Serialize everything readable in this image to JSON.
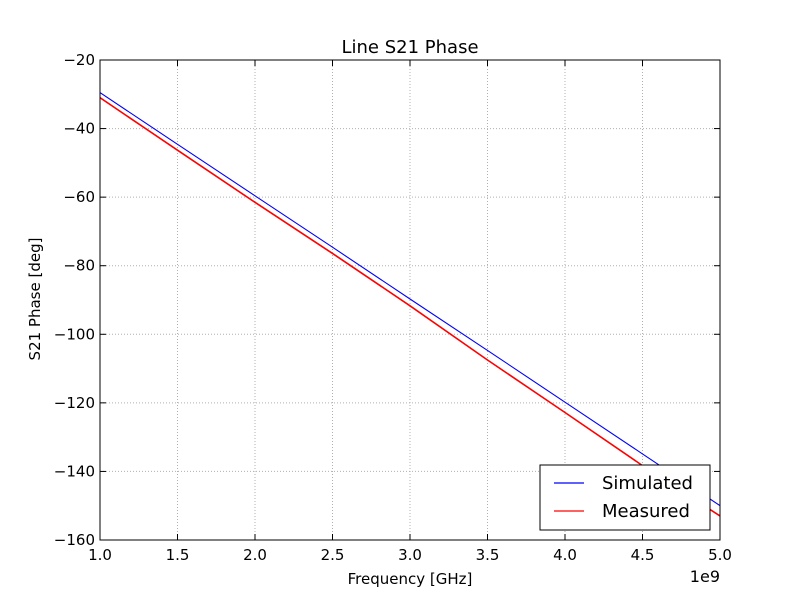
{
  "chart_data": {
    "type": "line",
    "title": "Line S21 Phase",
    "xlabel": "Frequency [GHz]",
    "ylabel": "S21 Phase [deg]",
    "x_offset_label": "1e9",
    "xlim": [
      1.0,
      5.0
    ],
    "ylim": [
      -160,
      -20
    ],
    "xticks": [
      1.0,
      1.5,
      2.0,
      2.5,
      3.0,
      3.5,
      4.0,
      4.5,
      5.0
    ],
    "xtick_labels": [
      "1.0",
      "1.5",
      "2.0",
      "2.5",
      "3.0",
      "3.5",
      "4.0",
      "4.5",
      "5.0"
    ],
    "yticks": [
      -160,
      -140,
      -120,
      -100,
      -80,
      -60,
      -40,
      -20
    ],
    "ytick_labels": [
      "−160",
      "−140",
      "−120",
      "−100",
      "−80",
      "−60",
      "−40",
      "−20"
    ],
    "grid": true,
    "legend_position": "lower-right",
    "series": [
      {
        "name": "Simulated",
        "color": "#0000ff",
        "x": [
          1.0,
          1.5,
          2.0,
          2.5,
          3.0,
          3.5,
          4.0,
          4.5,
          5.0
        ],
        "values": [
          -29.5,
          -44.6,
          -59.6,
          -74.6,
          -89.7,
          -104.7,
          -119.8,
          -134.9,
          -150.0
        ]
      },
      {
        "name": "Measured",
        "color": "#ff0000",
        "x": [
          1.0,
          1.5,
          2.0,
          2.5,
          3.0,
          3.5,
          4.0,
          4.5,
          5.0
        ],
        "values": [
          -31.0,
          -46.3,
          -61.5,
          -76.4,
          -91.7,
          -107.5,
          -122.8,
          -138.3,
          -153.0
        ]
      }
    ]
  }
}
